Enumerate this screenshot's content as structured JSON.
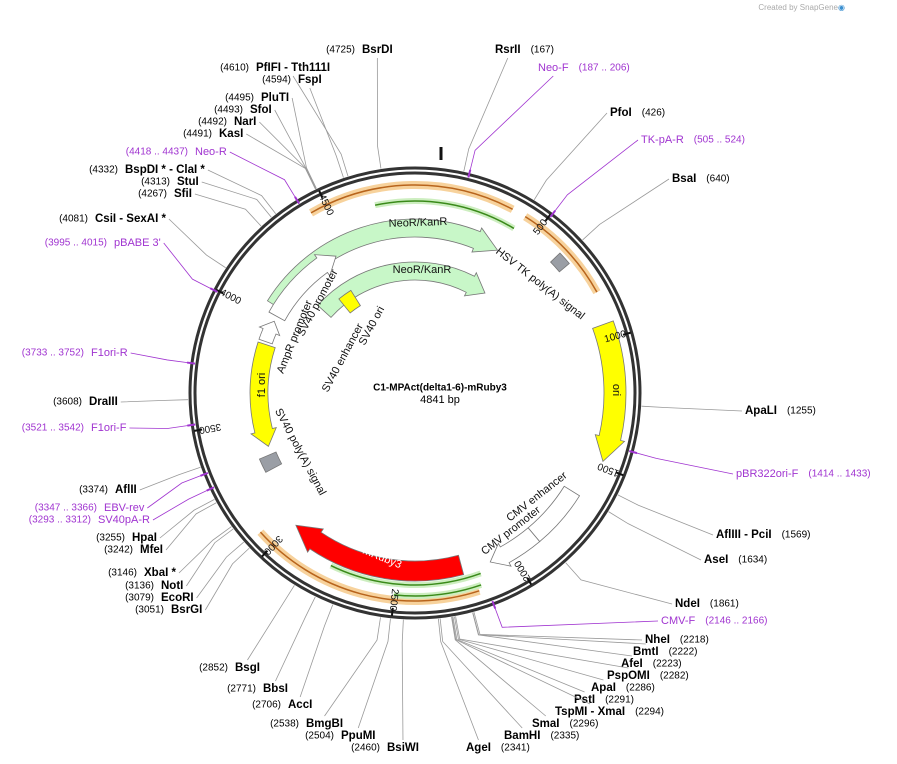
{
  "watermark": "Created by SnapGene",
  "plasmid": {
    "name": "C1-MPAct(delta1-6)-mRuby3",
    "length": "4841 bp"
  },
  "ticks": [
    500,
    1000,
    1500,
    2000,
    2500,
    3000,
    3500,
    4000,
    4500
  ],
  "enzymes": [
    {
      "name": "BsrDI",
      "site": "(4725)"
    },
    {
      "name": "RsrII",
      "site": "(167)"
    },
    {
      "name": "PfoI",
      "site": "(426)"
    },
    {
      "name": "BsaI",
      "site": "(640)"
    },
    {
      "name": "ApaLI",
      "site": "(1255)"
    },
    {
      "name": "AflIII - PciI",
      "site": "(1569)"
    },
    {
      "name": "AseI",
      "site": "(1634)"
    },
    {
      "name": "NdeI",
      "site": "(1861)"
    },
    {
      "name": "NheI",
      "site": "(2218)"
    },
    {
      "name": "BmtI",
      "site": "(2222)"
    },
    {
      "name": "AfeI",
      "site": "(2223)"
    },
    {
      "name": "PspOMI",
      "site": "(2282)"
    },
    {
      "name": "ApaI",
      "site": "(2286)"
    },
    {
      "name": "PstI",
      "site": "(2291)"
    },
    {
      "name": "TspMI - XmaI",
      "site": "(2294)"
    },
    {
      "name": "SmaI",
      "site": "(2296)"
    },
    {
      "name": "BamHI",
      "site": "(2335)"
    },
    {
      "name": "AgeI",
      "site": "(2341)"
    },
    {
      "name": "BsiWI",
      "site": "(2460)"
    },
    {
      "name": "PpuMI",
      "site": "(2504)"
    },
    {
      "name": "BmgBI",
      "site": "(2538)"
    },
    {
      "name": "AccI",
      "site": "(2706)"
    },
    {
      "name": "BbsI",
      "site": "(2771)"
    },
    {
      "name": "BsgI",
      "site": "(2852)"
    },
    {
      "name": "BsrGI",
      "site": "(3051)"
    },
    {
      "name": "EcoRI",
      "site": "(3079)"
    },
    {
      "name": "NotI",
      "site": "(3136)"
    },
    {
      "name": "XbaI *",
      "site": "(3146)"
    },
    {
      "name": "MfeI",
      "site": "(3242)"
    },
    {
      "name": "HpaI",
      "site": "(3255)"
    },
    {
      "name": "AflII",
      "site": "(3374)"
    },
    {
      "name": "DraIII",
      "site": "(3608)"
    },
    {
      "name": "CsiI - SexAI *",
      "site": "(4081)"
    },
    {
      "name": "SfiI",
      "site": "(4267)"
    },
    {
      "name": "StuI",
      "site": "(4313)"
    },
    {
      "name": "BspDI * - ClaI *",
      "site": "(4332)"
    },
    {
      "name": "KasI",
      "site": "(4491)"
    },
    {
      "name": "NarI",
      "site": "(4492)"
    },
    {
      "name": "SfoI",
      "site": "(4493)"
    },
    {
      "name": "PluTI",
      "site": "(4495)"
    },
    {
      "name": "FspI",
      "site": "(4594)"
    },
    {
      "name": "PfIFI - Tth111I",
      "site": "(4610)"
    }
  ],
  "primers": [
    {
      "name": "Neo-F",
      "range": "(187 .. 206)"
    },
    {
      "name": "TK-pA-R",
      "range": "(505 .. 524)"
    },
    {
      "name": "pBR322ori-F",
      "range": "(1414 .. 1433)"
    },
    {
      "name": "CMV-F",
      "range": "(2146 .. 2166)"
    },
    {
      "name": "EBV-rev",
      "range": "(3347 .. 3366)"
    },
    {
      "name": "SV40pA-R",
      "range": "(3293 .. 3312)"
    },
    {
      "name": "F1ori-F",
      "range": "(3521 .. 3542)"
    },
    {
      "name": "F1ori-R",
      "range": "(3733 .. 3752)"
    },
    {
      "name": "pBABE 3'",
      "range": "(3995 .. 4015)"
    },
    {
      "name": "Neo-R",
      "range": "(4418 .. 4437)"
    }
  ],
  "features": [
    {
      "label": "NeoR/KanR"
    },
    {
      "label": "NeoR/KanR"
    },
    {
      "label": "HSV TK poly(A) signal"
    },
    {
      "label": "ori"
    },
    {
      "label": "CMV enhancer"
    },
    {
      "label": "CMV promoter"
    },
    {
      "label": "mRuby3"
    },
    {
      "label": "SV40 poly(A) signal"
    },
    {
      "label": "f1 ori"
    },
    {
      "label": "AmpR promoter"
    },
    {
      "label": "SV40 promoter"
    },
    {
      "label": "SV40 enhancer"
    },
    {
      "label": "SV40 ori"
    }
  ]
}
